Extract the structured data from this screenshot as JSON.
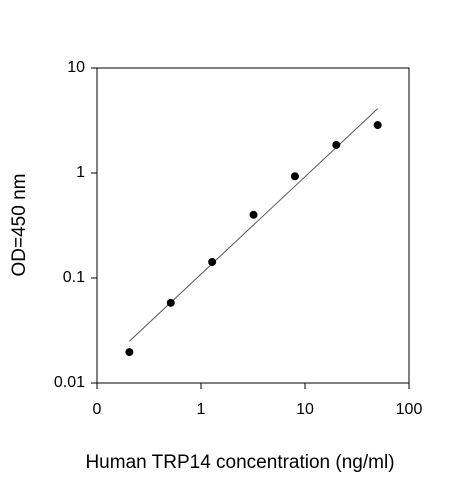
{
  "chart_data": {
    "type": "scatter",
    "x_label": "Human TRP14 concentration (ng/ml)",
    "y_label": "OD=450 nm",
    "x": [
      0.2048,
      0.512,
      1.28,
      3.2,
      8,
      20,
      50
    ],
    "values": [
      0.0197,
      0.058,
      0.142,
      0.4,
      0.93,
      1.85,
      2.86
    ],
    "color": "#000000",
    "fit_line": {
      "x": [
        0.2048,
        50
      ],
      "values": [
        0.025,
        4.1
      ],
      "color": "#555555"
    },
    "xlog": true,
    "ylog": true,
    "xlim": [
      0.1,
      100
    ],
    "ylim": [
      0.01,
      10
    ],
    "xticks": [
      {
        "value": 0.1,
        "label": "0"
      },
      1,
      10,
      100
    ],
    "yticks": [
      0.01,
      0.1,
      1,
      10
    ]
  }
}
